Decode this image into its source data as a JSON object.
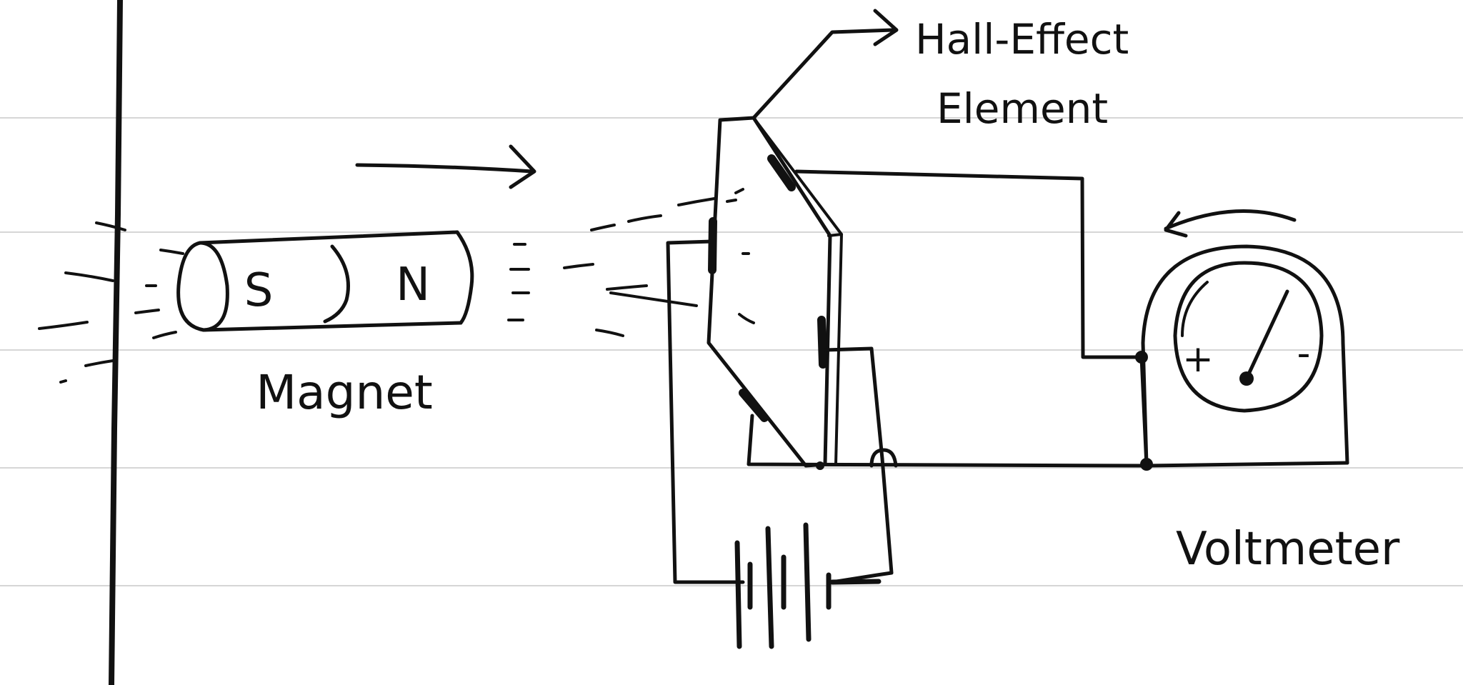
{
  "labels": {
    "magnet": "Magnet",
    "pole_s": "S",
    "pole_n": "N",
    "hall_line1": "Hall-Effect",
    "hall_line2": "Element",
    "voltmeter": "Voltmeter",
    "meter_plus": "+",
    "meter_minus": "-"
  },
  "colors": {
    "ink": "#111111",
    "paper": "#ffffff",
    "rule": "#d6d6d6"
  }
}
